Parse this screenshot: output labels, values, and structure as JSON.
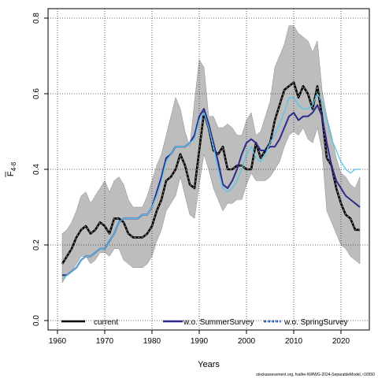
{
  "chart_data": {
    "type": "line",
    "xlabel": "Years",
    "ylabel": "F",
    "ylabel_sub": "4-8",
    "xlim": [
      1958,
      2026
    ],
    "ylim": [
      -0.025,
      0.825
    ],
    "x_ticks": [
      "1960",
      "1970",
      "1980",
      "1990",
      "2000",
      "2010",
      "2020"
    ],
    "y_ticks": [
      "0.0",
      "0.2",
      "0.4",
      "0.6",
      "0.8"
    ],
    "grid": true,
    "legend_position": "bottom",
    "caption": "stockassessment.org, fsalhe-NWWG-2024-SeparableModel, r16550",
    "x": [
      1961,
      1962,
      1963,
      1964,
      1965,
      1966,
      1967,
      1968,
      1969,
      1970,
      1971,
      1972,
      1973,
      1974,
      1975,
      1976,
      1977,
      1978,
      1979,
      1980,
      1981,
      1982,
      1983,
      1984,
      1985,
      1986,
      1987,
      1988,
      1989,
      1990,
      1991,
      1992,
      1993,
      1994,
      1995,
      1996,
      1997,
      1998,
      1999,
      2000,
      2001,
      2002,
      2003,
      2004,
      2005,
      2006,
      2007,
      2008,
      2009,
      2010,
      2011,
      2012,
      2013,
      2014,
      2015,
      2016,
      2017,
      2018,
      2019,
      2020,
      2021,
      2022,
      2023,
      2024
    ],
    "band": {
      "name": "confidence interval",
      "color": "#bdbdbd",
      "lower": [
        0.1,
        0.12,
        0.13,
        0.15,
        0.17,
        0.17,
        0.15,
        0.16,
        0.18,
        0.18,
        0.17,
        0.19,
        0.19,
        0.16,
        0.15,
        0.14,
        0.14,
        0.14,
        0.15,
        0.17,
        0.21,
        0.24,
        0.29,
        0.31,
        0.33,
        0.38,
        0.33,
        0.28,
        0.27,
        0.36,
        0.44,
        0.4,
        0.35,
        0.32,
        0.29,
        0.31,
        0.31,
        0.32,
        0.32,
        0.36,
        0.39,
        0.37,
        0.37,
        0.37,
        0.38,
        0.4,
        0.42,
        0.46,
        0.49,
        0.5,
        0.49,
        0.51,
        0.48,
        0.47,
        0.51,
        0.45,
        0.29,
        0.26,
        0.23,
        0.2,
        0.19,
        0.17,
        0.16,
        0.15
      ],
      "upper": [
        0.23,
        0.24,
        0.26,
        0.29,
        0.33,
        0.34,
        0.31,
        0.33,
        0.35,
        0.37,
        0.34,
        0.37,
        0.38,
        0.36,
        0.32,
        0.3,
        0.3,
        0.3,
        0.33,
        0.37,
        0.41,
        0.44,
        0.49,
        0.54,
        0.59,
        0.56,
        0.5,
        0.46,
        0.58,
        0.69,
        0.67,
        0.54,
        0.54,
        0.51,
        0.51,
        0.52,
        0.51,
        0.49,
        0.49,
        0.53,
        0.55,
        0.49,
        0.5,
        0.54,
        0.58,
        0.67,
        0.7,
        0.73,
        0.78,
        0.78,
        0.76,
        0.75,
        0.74,
        0.71,
        0.74,
        0.61,
        0.54,
        0.49,
        0.43,
        0.39,
        0.38,
        0.36,
        0.35,
        0.38
      ]
    },
    "series": [
      {
        "name": "current",
        "color": "#000000",
        "dash": "solid-with-dots",
        "values": [
          0.15,
          0.17,
          0.19,
          0.22,
          0.24,
          0.25,
          0.23,
          0.24,
          0.26,
          0.25,
          0.23,
          0.27,
          0.27,
          0.26,
          0.23,
          0.22,
          0.22,
          0.22,
          0.23,
          0.25,
          0.29,
          0.32,
          0.37,
          0.38,
          0.4,
          0.44,
          0.41,
          0.36,
          0.35,
          0.45,
          0.55,
          0.51,
          0.45,
          0.44,
          0.46,
          0.4,
          0.4,
          0.41,
          0.41,
          0.4,
          0.4,
          0.47,
          0.43,
          0.45,
          0.47,
          0.53,
          0.57,
          0.61,
          0.62,
          0.63,
          0.59,
          0.62,
          0.6,
          0.56,
          0.62,
          0.54,
          0.43,
          0.41,
          0.35,
          0.31,
          0.28,
          0.27,
          0.24,
          0.24
        ]
      },
      {
        "name": "w.o. SummerSurvey",
        "color": "#2b2a8a",
        "dash": "solid",
        "values": [
          0.12,
          0.12,
          0.13,
          0.14,
          0.16,
          0.17,
          0.17,
          0.18,
          0.19,
          0.19,
          0.21,
          0.23,
          0.26,
          0.27,
          0.27,
          0.27,
          0.27,
          0.28,
          0.28,
          0.3,
          0.34,
          0.38,
          0.43,
          0.44,
          0.46,
          0.46,
          0.46,
          0.47,
          0.49,
          0.54,
          0.56,
          0.52,
          0.47,
          0.42,
          0.36,
          0.35,
          0.37,
          0.4,
          0.44,
          0.47,
          0.48,
          0.47,
          0.45,
          0.45,
          0.46,
          0.46,
          0.48,
          0.51,
          0.54,
          0.55,
          0.53,
          0.54,
          0.54,
          0.55,
          0.57,
          0.54,
          0.47,
          0.41,
          0.37,
          0.35,
          0.33,
          0.32,
          0.31,
          0.3
        ]
      },
      {
        "name": "w.o. SpringSurvey",
        "color": "#56c5ee",
        "dash": "solid",
        "values": [
          0.11,
          0.12,
          0.13,
          0.14,
          0.16,
          0.17,
          0.17,
          0.18,
          0.19,
          0.19,
          0.21,
          0.23,
          0.26,
          0.27,
          0.27,
          0.27,
          0.27,
          0.28,
          0.28,
          0.3,
          0.33,
          0.37,
          0.42,
          0.44,
          0.46,
          0.46,
          0.46,
          0.47,
          0.48,
          0.53,
          0.55,
          0.51,
          0.46,
          0.4,
          0.35,
          0.34,
          0.35,
          0.37,
          0.4,
          0.44,
          0.46,
          0.43,
          0.42,
          0.44,
          0.47,
          0.49,
          0.52,
          0.55,
          0.59,
          0.59,
          0.57,
          0.56,
          0.56,
          0.57,
          0.6,
          0.58,
          0.53,
          0.48,
          0.45,
          0.42,
          0.4,
          0.39,
          0.4,
          0.4
        ]
      }
    ]
  }
}
